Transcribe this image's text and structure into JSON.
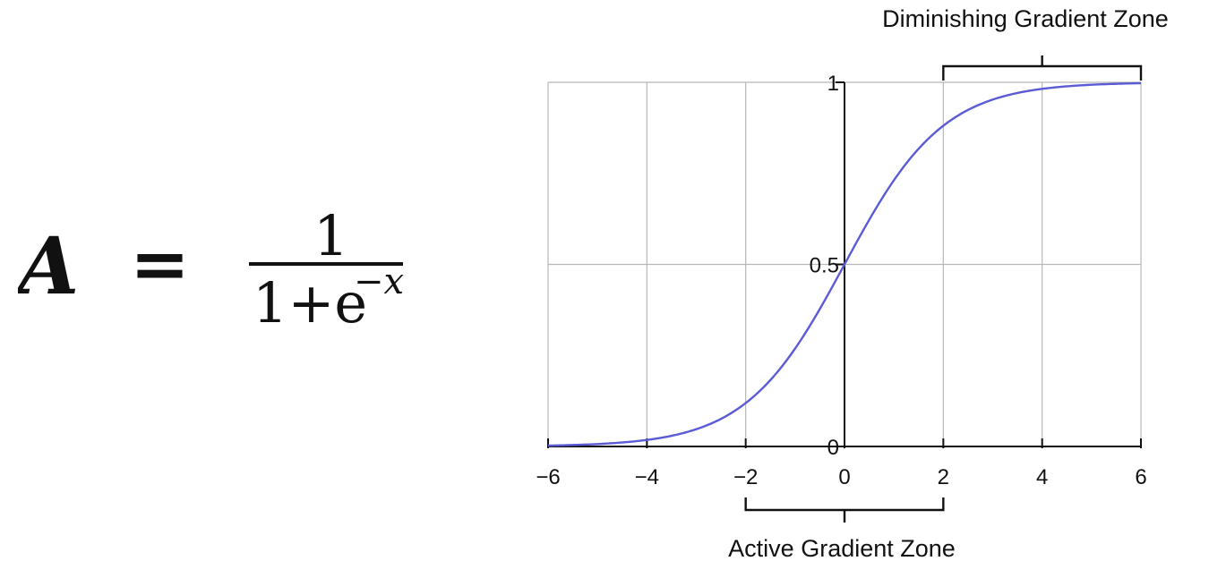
{
  "formula": {
    "lhs": "A",
    "equals": "=",
    "numerator": "1",
    "denominator_base": "1+e",
    "exponent": "−x"
  },
  "chart_data": {
    "type": "line",
    "function": "sigmoid",
    "series": [
      {
        "x": [
          -6,
          -5,
          -4,
          -3,
          -2,
          -1,
          0,
          1,
          2,
          3,
          4,
          5,
          6
        ],
        "values": [
          0.0025,
          0.0067,
          0.018,
          0.047,
          0.119,
          0.269,
          0.5,
          0.731,
          0.881,
          0.953,
          0.982,
          0.9933,
          0.9975
        ],
        "color": "#5b5bd6"
      }
    ],
    "xlim": [
      -6,
      6
    ],
    "ylim": [
      0,
      1
    ],
    "x_ticks": [
      -6,
      -4,
      -2,
      0,
      2,
      4,
      6
    ],
    "x_tick_labels": [
      "−6",
      "−4",
      "−2",
      "0",
      "2",
      "4",
      "6"
    ],
    "y_ticks": [
      0,
      0.5,
      1
    ],
    "y_tick_labels": [
      "0",
      "0.5",
      "1"
    ],
    "grid": true,
    "annotations": [
      {
        "label": "Diminishing Gradient Zone",
        "x_range": [
          2,
          6
        ],
        "position": "top"
      },
      {
        "label": "Active Gradient Zone",
        "x_range": [
          -2,
          2
        ],
        "position": "bottom"
      }
    ]
  }
}
